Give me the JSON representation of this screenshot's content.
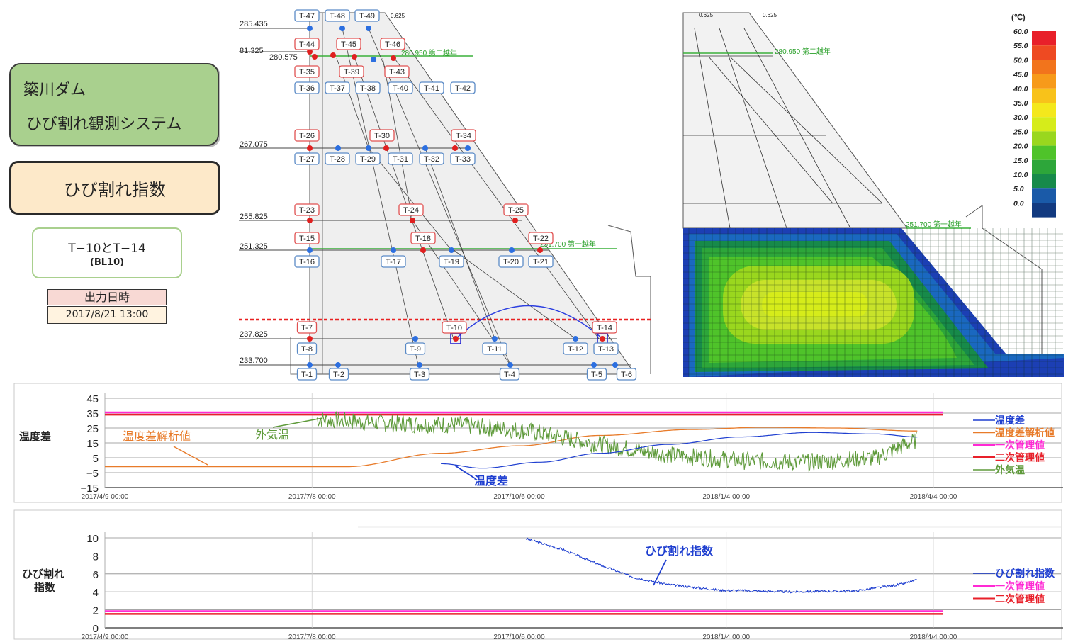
{
  "app": {
    "title_line1": "簗川ダム",
    "title_line2": "ひび割れ観測システム",
    "mode": "ひび割れ指数"
  },
  "pair": {
    "label": "T−10とT−14",
    "sub": "(BL10)"
  },
  "output": {
    "label": "出力日時",
    "value": "2017/8/21 13:00"
  },
  "section": {
    "elevations": [
      "285.435",
      "81.325",
      "280.575",
      "267.075",
      "255.825",
      "251.325",
      "237.825",
      "233.700"
    ],
    "level_labels": [
      "280.950 第二越年",
      "251.700 第一越年",
      "0.625"
    ],
    "sensors": [
      "T-47",
      "T-48",
      "T-49",
      "T-44",
      "T-45",
      "T-46",
      "T-35",
      "T-39",
      "T-43",
      "T-36",
      "T-37",
      "T-38",
      "T-40",
      "T-41",
      "T-42",
      "T-26",
      "T-30",
      "T-34",
      "T-27",
      "T-28",
      "T-29",
      "T-31",
      "T-32",
      "T-33",
      "T-23",
      "T-24",
      "T-25",
      "T-15",
      "T-18",
      "T-22",
      "T-16",
      "T-17",
      "T-19",
      "T-20",
      "T-21",
      "T-7",
      "T-10",
      "T-14",
      "T-8",
      "T-9",
      "T-11",
      "T-12",
      "T-13",
      "T-1",
      "T-2",
      "T-3",
      "T-4",
      "T-5",
      "T-6"
    ]
  },
  "heatmap": {
    "unit": "(℃)",
    "scale": [
      "60.0",
      "55.0",
      "50.0",
      "45.0",
      "40.0",
      "35.0",
      "30.0",
      "25.0",
      "20.0",
      "15.0",
      "10.0",
      "5.0",
      "0.0"
    ],
    "colors": [
      "#e8202a",
      "#ee4a22",
      "#f2741c",
      "#f79a1a",
      "#f8c21a",
      "#f4e81c",
      "#d6ec1a",
      "#9ad71e",
      "#4fc32a",
      "#2da63a",
      "#178a4a",
      "#1a5aa8",
      "#123a80"
    ],
    "level_labels": [
      "280.950 第二越年",
      "251.700 第一越年",
      "0.625"
    ]
  },
  "chart_data": [
    {
      "type": "line",
      "title": "",
      "ylabel": "温度差",
      "ylim": [
        -15,
        45
      ],
      "yticks": [
        "45",
        "35",
        "25",
        "15",
        "5",
        "−5",
        "−15"
      ],
      "xticks": [
        "2017/4/9 00:00",
        "2017/7/8 00:00",
        "2017/10/6 00:00",
        "2018/1/4 00:00",
        "2018/4/4 00:00"
      ],
      "series": [
        {
          "name": "温度差",
          "color": "#1f3fd0",
          "x": [
            "2017/9/2",
            "2017/9/20",
            "2017/10/15",
            "2017/11/10",
            "2017/12/10",
            "2018/1/10",
            "2018/2/10",
            "2018/3/10",
            "2018/3/28"
          ],
          "values": [
            1,
            -2,
            2,
            8,
            14,
            19,
            22,
            21,
            19
          ]
        },
        {
          "name": "温度差解析値",
          "color": "#e87b2a",
          "x": [
            "2017/4/9",
            "2017/7/23",
            "2017/9/2",
            "2017/10/6",
            "2017/11/10",
            "2017/12/20",
            "2018/1/20",
            "2018/2/20",
            "2018/3/28"
          ],
          "values": [
            -1,
            -1,
            8,
            13,
            20,
            24,
            25.5,
            25,
            23
          ]
        },
        {
          "name": "一次管理値",
          "color": "#ff2ad4",
          "values": [
            35.5
          ]
        },
        {
          "name": "二次管理値",
          "color": "#e8202a",
          "values": [
            34
          ]
        },
        {
          "name": "外気温",
          "color": "#5e9a3a",
          "x": [
            "2017/7/10",
            "2017/8/10",
            "2017/9/10",
            "2017/10/10",
            "2017/11/10",
            "2017/12/10",
            "2018/1/10",
            "2018/2/10",
            "2018/3/10",
            "2018/3/28"
          ],
          "values": [
            31,
            28,
            27,
            23,
            14,
            7,
            3,
            2,
            5,
            17
          ]
        }
      ],
      "annotations": [
        "温度差解析値",
        "外気温",
        "温度差"
      ]
    },
    {
      "type": "line",
      "title": "",
      "ylabel": "ひび割れ指数",
      "ylim": [
        0,
        10
      ],
      "yticks": [
        "10",
        "8",
        "6",
        "4",
        "2",
        "0"
      ],
      "xticks": [
        "2017/4/9 00:00",
        "2017/7/8 00:00",
        "2017/10/6 00:00",
        "2018/1/4 00:00",
        "2018/4/4 00:00"
      ],
      "series": [
        {
          "name": "ひび割れ指数",
          "color": "#1f3fd0",
          "x": [
            "2017/10/9",
            "2017/10/25",
            "2017/11/10",
            "2017/11/25",
            "2017/12/10",
            "2018/1/1",
            "2018/2/1",
            "2018/3/1",
            "2018/3/20",
            "2018/3/28"
          ],
          "values": [
            9.9,
            8.7,
            7.0,
            5.6,
            4.8,
            4.2,
            4.0,
            4.1,
            4.8,
            5.3
          ]
        },
        {
          "name": "一次管理値",
          "color": "#ff2ad4",
          "values": [
            1.85
          ]
        },
        {
          "name": "二次管理値",
          "color": "#e8202a",
          "values": [
            1.55
          ]
        }
      ],
      "annotations": [
        "ひび割れ指数"
      ]
    }
  ]
}
